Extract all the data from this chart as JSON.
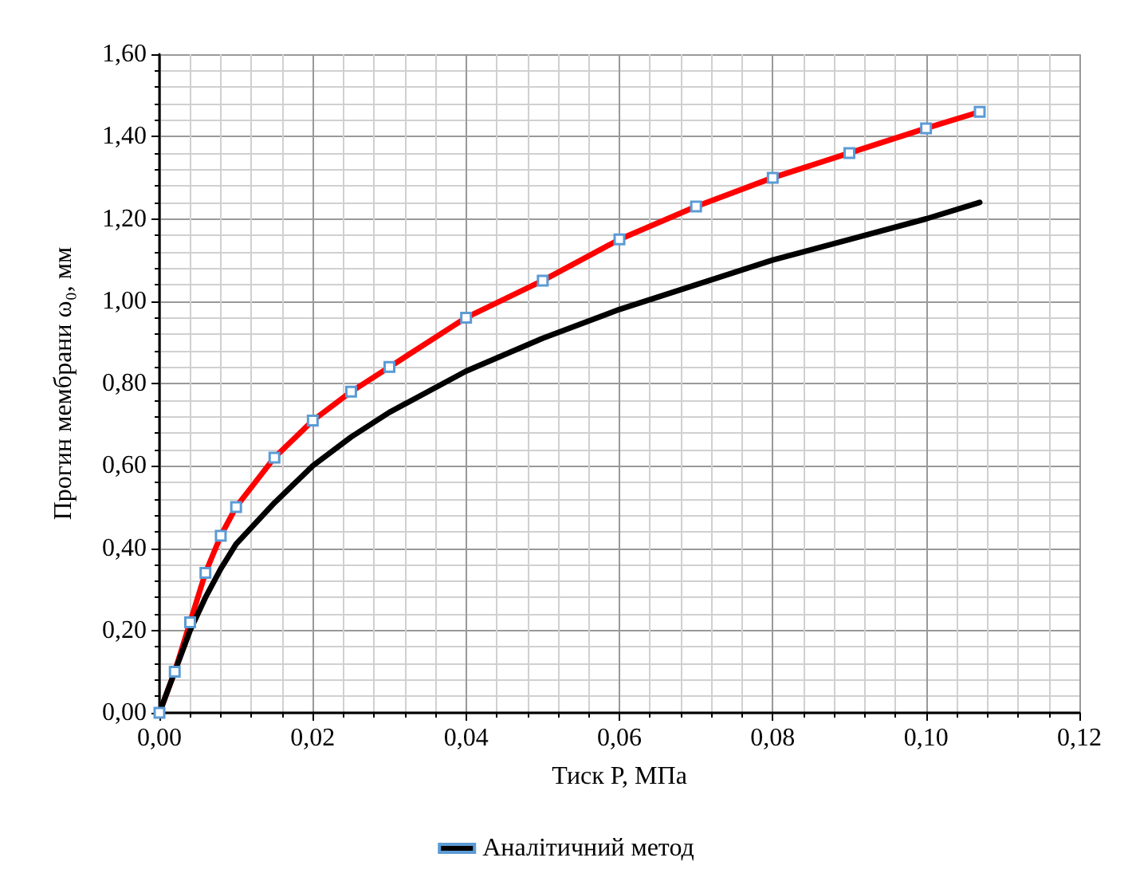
{
  "chart_data": {
    "type": "line",
    "xlabel": "Тиск P, МПа",
    "ylabel": "Прогин мембрани ω₀, мм",
    "x": [
      0,
      0.002,
      0.004,
      0.006,
      0.008,
      0.01,
      0.015,
      0.02,
      0.025,
      0.03,
      0.04,
      0.05,
      0.06,
      0.07,
      0.08,
      0.09,
      0.1,
      0.107
    ],
    "series": [
      {
        "color": "#ff0000",
        "marker": "square",
        "values": [
          0,
          0.1,
          0.22,
          0.34,
          0.43,
          0.5,
          0.62,
          0.71,
          0.78,
          0.84,
          0.96,
          1.05,
          1.15,
          1.23,
          1.3,
          1.36,
          1.42,
          1.46
        ]
      },
      {
        "name": "Аналітичний метод",
        "color": "#000000",
        "marker": "none",
        "values": [
          0,
          0.1,
          0.2,
          0.28,
          0.35,
          0.41,
          0.51,
          0.6,
          0.67,
          0.73,
          0.83,
          0.91,
          0.98,
          1.04,
          1.1,
          1.15,
          1.2,
          1.24
        ]
      }
    ],
    "xlim": [
      0,
      0.12
    ],
    "xticks": [
      {
        "value": 0,
        "label": "0,00"
      },
      {
        "value": 0.02,
        "label": "0,02"
      },
      {
        "value": 0.04,
        "label": "0,04"
      },
      {
        "value": 0.06,
        "label": "0,06"
      },
      {
        "value": 0.08,
        "label": "0,08"
      },
      {
        "value": 0.1,
        "label": "0,10"
      },
      {
        "value": 0.12,
        "label": "0,12"
      }
    ],
    "ylim": [
      0,
      1.6
    ],
    "yticks": [
      {
        "value": 0,
        "label": "0,00"
      },
      {
        "value": 0.2,
        "label": "0,20"
      },
      {
        "value": 0.4,
        "label": "0,40"
      },
      {
        "value": 0.6,
        "label": "0,60"
      },
      {
        "value": 0.8,
        "label": "0,80"
      },
      {
        "value": 1,
        "label": "1,00"
      },
      {
        "value": 1.2,
        "label": "1,20"
      },
      {
        "value": 1.4,
        "label": "1,40"
      },
      {
        "value": 1.6,
        "label": "1,60"
      }
    ],
    "grid": true,
    "legend": "bottom",
    "line_style": "solid"
  }
}
